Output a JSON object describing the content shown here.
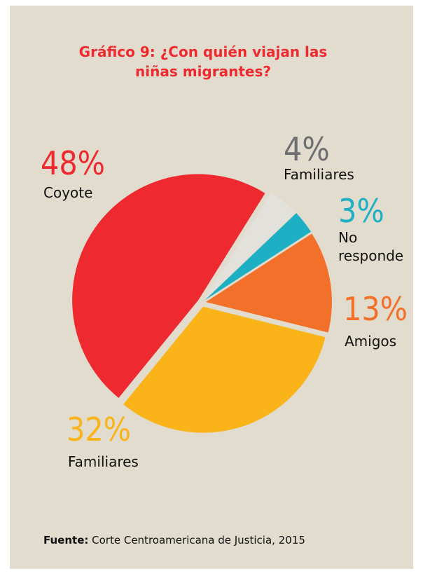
{
  "chart_data": {
    "type": "pie",
    "title": "Gráfico 9: ¿Con quién viajan las niñas migrantes?",
    "categories": [
      "Familiares",
      "No responde",
      "Amigos",
      "Familiares",
      "Coyote"
    ],
    "values": [
      4,
      3,
      13,
      32,
      48
    ],
    "value_labels": [
      "4%",
      "3%",
      "13%",
      "32%",
      "48%"
    ],
    "colors": [
      "#e3e1dc",
      "#1db0c4",
      "#f2702a",
      "#fbb31a",
      "#ee2a30"
    ],
    "label_colors": [
      "#6d6e71",
      "#1db0c4",
      "#f2702a",
      "#fbb31a",
      "#ee2a30"
    ],
    "source_label": "Fuente:",
    "source": "Corte Centroamericana de Justicia, 2015"
  }
}
